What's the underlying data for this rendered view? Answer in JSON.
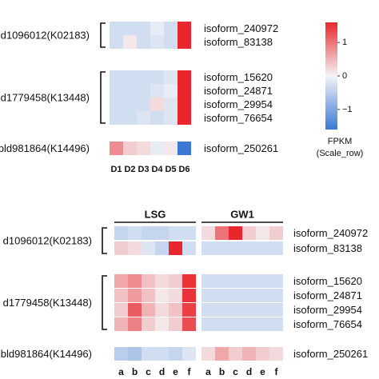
{
  "chart_data": [
    {
      "type": "heatmap",
      "title": "",
      "columns": [
        "D1",
        "D2",
        "D3",
        "D4",
        "D5",
        "D6"
      ],
      "gene_groups": [
        {
          "gene": "d1096012(K02183)",
          "rows": [
            "isoform_240972",
            "isoform_83138"
          ]
        },
        {
          "gene": "d1779458(K13448)",
          "rows": [
            "isoform_15620",
            "isoform_24871",
            "isoform_29954",
            "isoform_76654"
          ]
        },
        {
          "gene": "bld981864(K14496)",
          "rows": [
            "isoform_250261"
          ]
        }
      ],
      "values": [
        [
          -0.3,
          -0.3,
          -0.3,
          -0.1,
          -0.3,
          1.6
        ],
        [
          -0.3,
          0.1,
          -0.3,
          -0.2,
          -0.3,
          1.6
        ],
        [
          -0.3,
          -0.3,
          -0.3,
          -0.3,
          -0.2,
          1.6
        ],
        [
          -0.3,
          -0.3,
          -0.3,
          -0.2,
          -0.1,
          1.6
        ],
        [
          -0.3,
          -0.3,
          -0.3,
          0.2,
          -0.2,
          1.6
        ],
        [
          -0.3,
          -0.3,
          -0.2,
          -0.3,
          -0.2,
          1.6
        ],
        [
          0.8,
          0.3,
          0.2,
          -0.1,
          0.1,
          -1.6
        ]
      ],
      "legend": {
        "title_line1": "FPKM",
        "title_line2": "(Scale_row)",
        "ticks": [
          1,
          0,
          -1
        ],
        "tick_labels": [
          "1",
          "0",
          "−1"
        ],
        "range": [
          -1.6,
          1.6
        ],
        "position": "right"
      }
    },
    {
      "type": "heatmap",
      "title": "",
      "column_groups": [
        {
          "label": "LSG",
          "columns": [
            "a",
            "b",
            "c",
            "d",
            "e",
            "f"
          ]
        },
        {
          "label": "GW1",
          "columns": [
            "a",
            "b",
            "c",
            "d",
            "e",
            "f"
          ]
        }
      ],
      "gene_groups": [
        {
          "gene": "d1096012(K02183)",
          "rows": [
            "isoform_240972",
            "isoform_83138"
          ]
        },
        {
          "gene": "d1779458(K13448)",
          "rows": [
            "isoform_15620",
            "isoform_24871",
            "isoform_29954",
            "isoform_76654"
          ]
        },
        {
          "gene": "bld981864(K14496)",
          "rows": [
            "isoform_250261"
          ]
        }
      ],
      "values": [
        [
          -0.4,
          -0.3,
          -0.4,
          -0.4,
          -0.3,
          -0.3,
          0.2,
          1.0,
          1.6,
          0.3,
          0.1,
          0.3
        ],
        [
          0.3,
          0.2,
          -0.2,
          -0.4,
          1.6,
          -0.3,
          -0.3,
          -0.3,
          -0.3,
          -0.3,
          -0.3,
          -0.3
        ],
        [
          0.6,
          0.8,
          0.4,
          0.2,
          0.3,
          1.5,
          -0.3,
          -0.3,
          -0.3,
          -0.3,
          -0.3,
          -0.3
        ],
        [
          0.4,
          0.7,
          0.4,
          0.1,
          0.2,
          1.5,
          -0.3,
          -0.3,
          -0.3,
          -0.3,
          -0.3,
          -0.3
        ],
        [
          0.3,
          1.2,
          0.5,
          0.2,
          0.4,
          1.4,
          -0.3,
          -0.3,
          -0.3,
          -0.3,
          -0.3,
          -0.3
        ],
        [
          0.5,
          0.9,
          0.3,
          0.1,
          0.3,
          1.3,
          -0.3,
          -0.3,
          -0.3,
          -0.3,
          -0.3,
          -0.3
        ],
        [
          -0.5,
          -0.6,
          -0.3,
          -0.3,
          -0.4,
          -0.2,
          0.2,
          0.6,
          0.3,
          0.5,
          0.3,
          0.2
        ]
      ]
    }
  ],
  "colors": {
    "low": "#3a77d6",
    "mid": "#f4f4f6",
    "high": "#e8262c"
  }
}
